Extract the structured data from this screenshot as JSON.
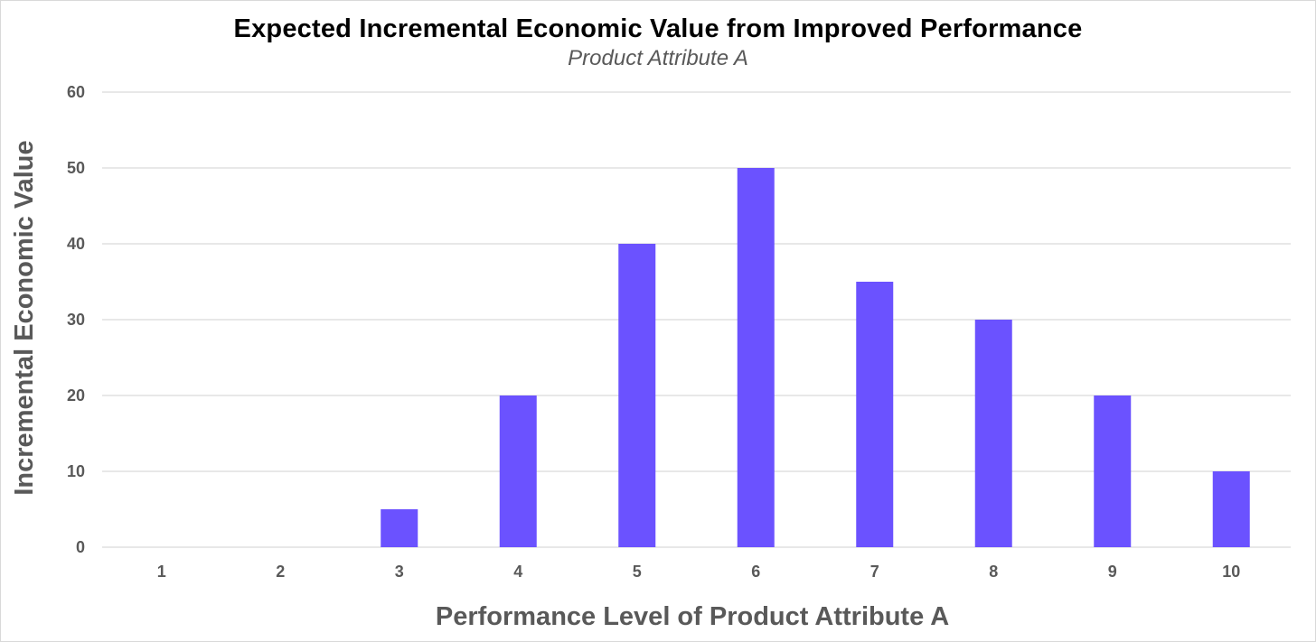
{
  "chart_data": {
    "type": "bar",
    "title": "Expected Incremental Economic Value from Improved Performance",
    "subtitle": "Product Attribute A",
    "xlabel": "Performance Level of Product Attribute A",
    "ylabel": "Incremental Economic Value",
    "categories": [
      "1",
      "2",
      "3",
      "4",
      "5",
      "6",
      "7",
      "8",
      "9",
      "10"
    ],
    "values": [
      0,
      0,
      5,
      20,
      40,
      50,
      35,
      30,
      20,
      10
    ],
    "ylim": [
      0,
      60
    ],
    "yticks": [
      0,
      10,
      20,
      30,
      40,
      50,
      60
    ],
    "grid": true,
    "legend": "none",
    "bar_color": "#6b52ff",
    "grid_color": "#d9d9d9"
  }
}
